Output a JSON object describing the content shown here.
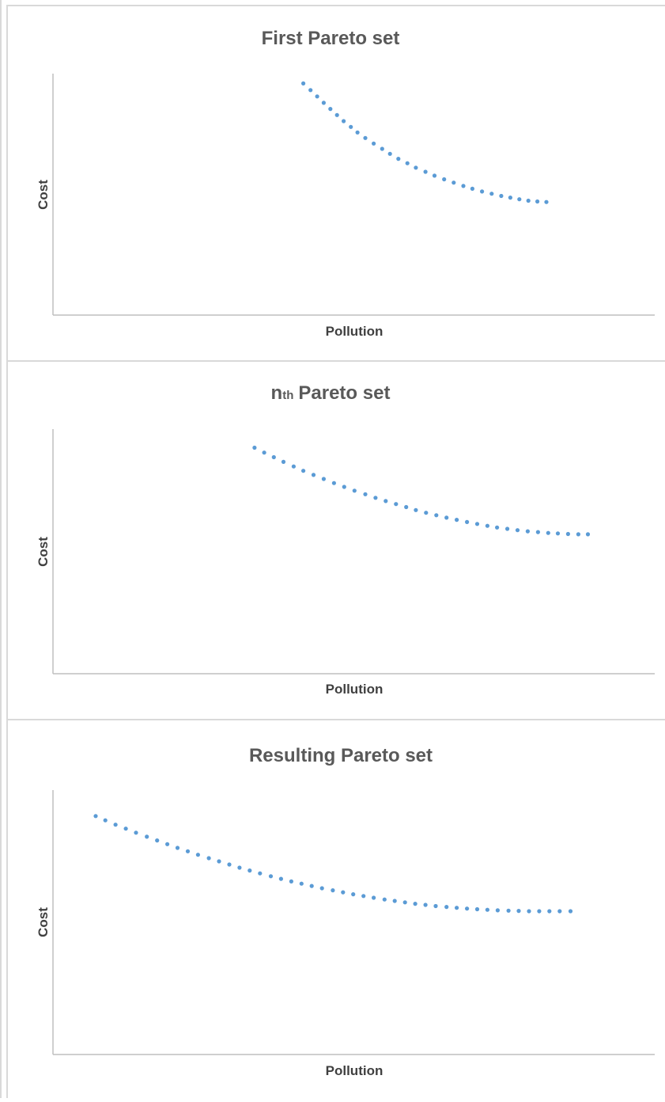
{
  "chart_data": [
    {
      "type": "scatter",
      "title": "First Pareto set",
      "xlabel": "Pollution",
      "ylabel": "Cost",
      "xlim": [
        0,
        100
      ],
      "ylim": [
        0,
        100
      ],
      "grid": false,
      "color": "#5b9bd5",
      "x": [
        41.6,
        42.8,
        43.9,
        45.0,
        46.1,
        47.2,
        48.3,
        49.5,
        50.6,
        51.9,
        53.3,
        54.7,
        56.0,
        57.4,
        58.9,
        60.3,
        61.9,
        63.4,
        65.0,
        66.6,
        68.2,
        69.7,
        71.3,
        72.9,
        74.5,
        76.0,
        77.5,
        79.0,
        80.5,
        82.0
      ],
      "y": [
        83.6,
        81.2,
        78.9,
        76.6,
        74.4,
        72.2,
        70.0,
        67.9,
        65.9,
        63.9,
        61.9,
        60.0,
        58.2,
        56.4,
        54.8,
        53.2,
        51.7,
        50.3,
        49.0,
        47.8,
        46.6,
        45.6,
        44.6,
        43.8,
        43.0,
        42.4,
        41.8,
        41.3,
        41.0,
        40.8
      ]
    },
    {
      "type": "scatter",
      "title": "nth Pareto set",
      "title_main": "Pareto set",
      "title_n": "n",
      "title_sup": "th",
      "xlabel": "Pollution",
      "ylabel": "Cost",
      "xlim": [
        0,
        100
      ],
      "ylim": [
        0,
        100
      ],
      "grid": false,
      "color": "#5b9bd5",
      "x": [
        33.5,
        35.1,
        36.7,
        38.3,
        40.0,
        41.6,
        43.3,
        45.0,
        46.7,
        48.4,
        50.1,
        51.9,
        53.6,
        55.3,
        57.0,
        58.7,
        60.3,
        62.0,
        63.7,
        65.4,
        67.1,
        68.8,
        70.5,
        72.2,
        73.8,
        75.5,
        77.2,
        78.9,
        80.6,
        82.3,
        83.9,
        85.6,
        87.3,
        88.9
      ],
      "y": [
        83.0,
        81.2,
        79.5,
        77.8,
        76.1,
        74.5,
        73.0,
        71.5,
        70.0,
        68.6,
        67.2,
        65.9,
        64.6,
        63.4,
        62.3,
        61.2,
        60.1,
        59.1,
        58.2,
        57.3,
        56.5,
        55.7,
        55.0,
        54.3,
        53.7,
        53.2,
        52.7,
        52.3,
        52.0,
        51.7,
        51.5,
        51.3,
        51.2,
        51.2
      ]
    },
    {
      "type": "scatter",
      "title": "Resulting Pareto set",
      "xlabel": "Pollution",
      "ylabel": "Cost",
      "xlim": [
        0,
        100
      ],
      "ylim": [
        0,
        100
      ],
      "grid": false,
      "color": "#5b9bd5",
      "x": [
        7.1,
        8.7,
        10.4,
        12.1,
        13.8,
        15.6,
        17.3,
        19.0,
        20.7,
        22.4,
        24.1,
        25.9,
        27.6,
        29.3,
        31.0,
        32.7,
        34.4,
        36.2,
        37.9,
        39.6,
        41.3,
        43.0,
        44.7,
        46.5,
        48.2,
        49.9,
        51.6,
        53.3,
        55.1,
        56.8,
        58.5,
        60.2,
        61.9,
        63.6,
        65.4,
        67.1,
        68.8,
        70.5,
        72.2,
        73.9,
        75.7,
        77.4,
        79.1,
        80.8,
        82.5,
        84.2,
        86.0
      ],
      "y": [
        83.2,
        81.7,
        80.2,
        78.8,
        77.4,
        76.0,
        74.7,
        73.4,
        72.1,
        70.9,
        69.7,
        68.5,
        67.4,
        66.3,
        65.2,
        64.2,
        63.2,
        62.2,
        61.3,
        60.4,
        59.6,
        58.8,
        58.0,
        57.3,
        56.6,
        55.9,
        55.3,
        54.7,
        54.1,
        53.6,
        53.1,
        52.6,
        52.2,
        51.8,
        51.5,
        51.2,
        50.9,
        50.7,
        50.5,
        50.3,
        50.2,
        50.1,
        50.0,
        50.0,
        50.0,
        50.0,
        50.0
      ]
    }
  ]
}
